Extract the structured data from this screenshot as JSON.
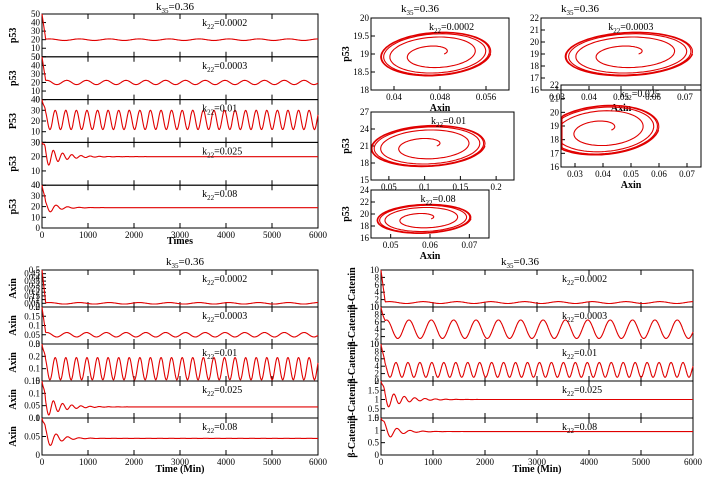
{
  "chart_data": [
    {
      "type": "line",
      "title": "k35=0.36",
      "xlabel": "Times",
      "xlim": [
        0,
        6000
      ],
      "xticks": [
        "0",
        "1000",
        "2000",
        "3000",
        "4000",
        "5000",
        "6000"
      ],
      "panels": [
        {
          "ylabel": "p53",
          "annotation": "k22=0.0002",
          "ylim": [
            0,
            50
          ],
          "yticks": [
            "0",
            "10",
            "20",
            "30",
            "40",
            "50"
          ],
          "steady": 20,
          "amp": 0.9,
          "period": 650,
          "decay": 0
        },
        {
          "ylabel": "p53",
          "annotation": "k22=0.0003",
          "ylim": [
            0,
            50
          ],
          "yticks": [
            "0",
            "10",
            "20",
            "30",
            "40",
            "50"
          ],
          "steady": 20,
          "amp": 2.5,
          "period": 430,
          "decay": 0
        },
        {
          "ylabel": "P53",
          "annotation": "k22=0.01",
          "ylim": [
            0,
            40
          ],
          "yticks": [
            "0",
            "10",
            "20",
            "30",
            "40"
          ],
          "steady": 21,
          "amp": 9,
          "period": 230,
          "decay": 0
        },
        {
          "ylabel": "p53",
          "annotation": "k22=0.025",
          "ylim": [
            0,
            30
          ],
          "yticks": [
            "0",
            "10",
            "20",
            "30"
          ],
          "steady": 20,
          "amp": 9,
          "period": 200,
          "decay": 350
        },
        {
          "ylabel": "p53",
          "annotation": "k22=0.08",
          "ylim": [
            0,
            40
          ],
          "yticks": [
            "0",
            "10",
            "20",
            "30",
            "40"
          ],
          "steady": 19,
          "amp": 8,
          "period": 250,
          "decay": 250
        }
      ]
    },
    {
      "type": "scatter",
      "title": "k35=0.36",
      "panels": [
        {
          "xlabel": "Axin",
          "ylabel": "p53",
          "annotation": "k22=0.0002",
          "xticks": [
            "0.04",
            "0.048",
            "0.056"
          ],
          "yticks": [
            "18",
            "18.5",
            "19",
            "19.5",
            "20"
          ]
        },
        {
          "xlabel": "Axin",
          "ylabel": "",
          "annotation": "k22=0.0003",
          "xticks": [
            "0.03",
            "0.04",
            "0.05",
            "0.06",
            "0.07"
          ],
          "yticks": [
            "16",
            "17",
            "18",
            "19",
            "20",
            "21",
            "22"
          ]
        },
        {
          "xlabel": "",
          "ylabel": "p53",
          "annotation": "k22=0.01",
          "xticks": [
            "0.05",
            "0.1",
            "0.15",
            "0.2"
          ],
          "yticks": [
            "15",
            "18",
            "21",
            "24",
            "27"
          ]
        },
        {
          "xlabel": "Axin",
          "ylabel": "",
          "annotation": "k22=0.025",
          "xticks": [
            "0.03",
            "0.04",
            "0.05",
            "0.06",
            "0.07"
          ],
          "yticks": [
            "16",
            "17",
            "18",
            "19",
            "20",
            "21",
            "22"
          ]
        },
        {
          "xlabel": "Axin",
          "ylabel": "p53",
          "annotation": "k22=0.08",
          "xticks": [
            "0.05",
            "0.06",
            "0.07"
          ],
          "yticks": [
            "16",
            "18",
            "20",
            "22",
            "24"
          ]
        }
      ]
    },
    {
      "type": "line",
      "title": "k35=0.36",
      "xlabel": "Time (Min)",
      "xlim": [
        0,
        6000
      ],
      "xticks": [
        "0",
        "1000",
        "2000",
        "3000",
        "4000",
        "5000",
        "6000"
      ],
      "panels": [
        {
          "ylabel": "Axin",
          "annotation": "k22=0.0002",
          "ylim": [
            0,
            0.5
          ],
          "yticks": [
            "0",
            "0.05",
            "0.1",
            "0.15",
            "0.2",
            "0.25",
            "0.3",
            "0.35",
            "0.4",
            "0.45",
            "0.5"
          ],
          "steady": 0.05,
          "amp": 0.01,
          "period": 650,
          "decay": 0
        },
        {
          "ylabel": "Axin",
          "annotation": "k22=0.0003",
          "ylim": [
            0,
            0.2
          ],
          "yticks": [
            "0",
            "0.05",
            "0.1",
            "0.15",
            "0.2"
          ],
          "steady": 0.05,
          "amp": 0.012,
          "period": 430,
          "decay": 0
        },
        {
          "ylabel": "Axin",
          "annotation": "k22=0.01",
          "ylim": [
            0,
            0.3
          ],
          "yticks": [
            "0",
            "0.1",
            "0.2",
            "0.3"
          ],
          "steady": 0.1,
          "amp": 0.09,
          "period": 230,
          "decay": 0
        },
        {
          "ylabel": "Axin",
          "annotation": "k22=0.025",
          "ylim": [
            0,
            0.15
          ],
          "yticks": [
            "0",
            "0.05",
            "0.1",
            "0.15"
          ],
          "steady": 0.045,
          "amp": 0.05,
          "period": 200,
          "decay": 350
        },
        {
          "ylabel": "Axin",
          "annotation": "k22=0.08",
          "ylim": [
            0,
            0.1
          ],
          "yticks": [
            "0",
            "0.05",
            "0.1"
          ],
          "steady": 0.045,
          "amp": 0.04,
          "period": 250,
          "decay": 250
        }
      ]
    },
    {
      "type": "line",
      "title": "k35=0.36",
      "xlabel": "Time (Min)",
      "xlim": [
        0,
        6000
      ],
      "xticks": [
        "0",
        "1000",
        "2000",
        "3000",
        "4000",
        "5000",
        "6000"
      ],
      "panels": [
        {
          "ylabel": "β-Catenin",
          "annotation": "k22=0.0002",
          "ylim": [
            0,
            10
          ],
          "yticks": [
            "0",
            "2",
            "4",
            "6",
            "8",
            "10"
          ],
          "steady": 1.2,
          "amp": 0.25,
          "period": 650,
          "decay": 0
        },
        {
          "ylabel": "β-Catenin",
          "annotation": "k22=0.0003",
          "ylim": [
            0,
            10
          ],
          "yticks": [
            "0",
            "2",
            "4",
            "6",
            "8",
            "10"
          ],
          "steady": 4,
          "amp": 2.5,
          "period": 430,
          "decay": 0
        },
        {
          "ylabel": "β-Catenin",
          "annotation": "k22=0.01",
          "ylim": [
            0,
            10
          ],
          "yticks": [
            "0",
            "2",
            "4",
            "6",
            "8",
            "10"
          ],
          "steady": 3,
          "amp": 2,
          "period": 230,
          "decay": 0
        },
        {
          "ylabel": "β-Catenin",
          "annotation": "k22=0.025",
          "ylim": [
            0,
            2
          ],
          "yticks": [
            "0",
            "0.5",
            "1",
            "1.5",
            "2"
          ],
          "steady": 1,
          "amp": 0.6,
          "period": 200,
          "decay": 350
        },
        {
          "ylabel": "β-Catenin",
          "annotation": "k22=0.08",
          "ylim": [
            0,
            1.5
          ],
          "yticks": [
            "0",
            "0.5",
            "1",
            "1.5"
          ],
          "steady": 0.95,
          "amp": 0.45,
          "period": 250,
          "decay": 250
        }
      ]
    }
  ]
}
